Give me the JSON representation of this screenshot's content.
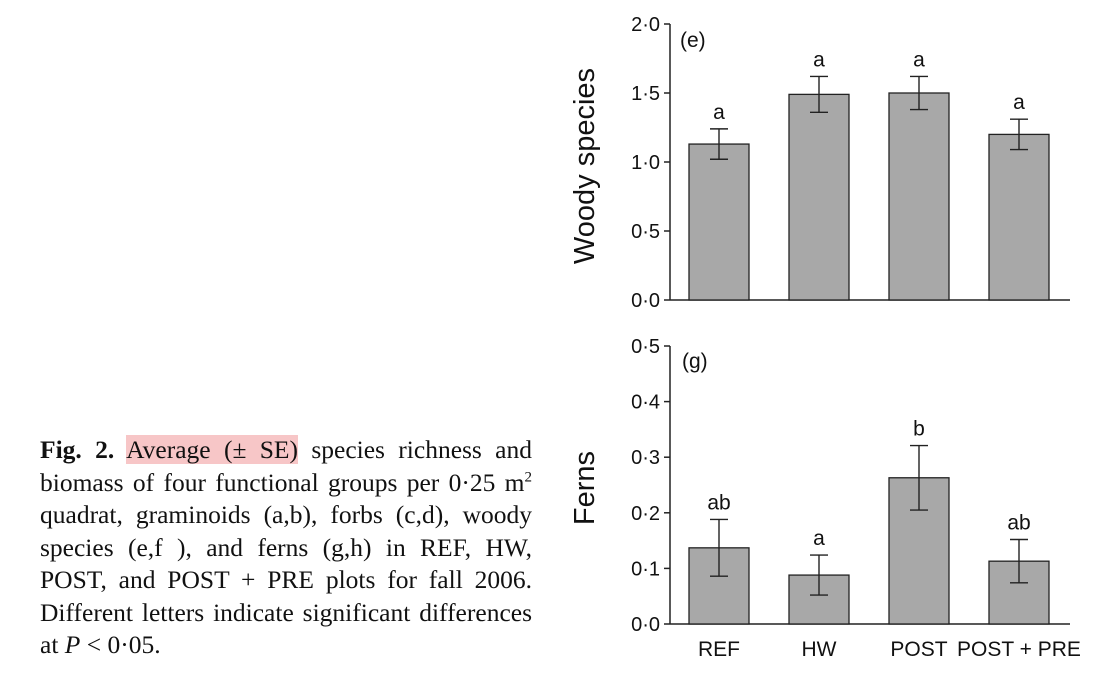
{
  "caption": {
    "fig_label": "Fig. 2.",
    "highlight": "Average (± SE)",
    "text_1": " species richness and biomass of four functional groups per 0·25 m",
    "superscript": "2",
    "text_2": " quadrat, graminoids (a,b), forbs (c,d), woody species (e,f ), and ferns (g,h) in REF, HW, POST, and POST + PRE plots for fall 2006. Different letters indicate significant differences at ",
    "p_symbol": "P",
    "text_3": " < 0·05."
  },
  "chart_data": [
    {
      "type": "bar",
      "panel_label": "(e)",
      "ylabel": "Woody species",
      "ylim": [
        0,
        2.0
      ],
      "yticks": [
        "0·0",
        "0·5",
        "1·0",
        "1·5",
        "2·0"
      ],
      "categories": [
        "REF",
        "HW",
        "POST",
        "POST + PRE"
      ],
      "values": [
        1.13,
        1.49,
        1.5,
        1.2
      ],
      "error": [
        0.11,
        0.13,
        0.12,
        0.11
      ],
      "significance": [
        "a",
        "a",
        "a",
        "a"
      ],
      "bar_color": "#a8a8a8"
    },
    {
      "type": "bar",
      "panel_label": "(g)",
      "ylabel": "Ferns",
      "ylim": [
        0,
        0.5
      ],
      "yticks": [
        "0·0",
        "0·1",
        "0·2",
        "0·3",
        "0·4",
        "0·5"
      ],
      "categories": [
        "REF",
        "HW",
        "POST",
        "POST + PRE"
      ],
      "category_labels": [
        "REF",
        "HW",
        "POST",
        "POST + PRE"
      ],
      "values": [
        0.137,
        0.088,
        0.263,
        0.113
      ],
      "error": [
        0.051,
        0.036,
        0.058,
        0.039
      ],
      "significance": [
        "ab",
        "a",
        "b",
        "ab"
      ],
      "bar_color": "#a8a8a8"
    }
  ]
}
